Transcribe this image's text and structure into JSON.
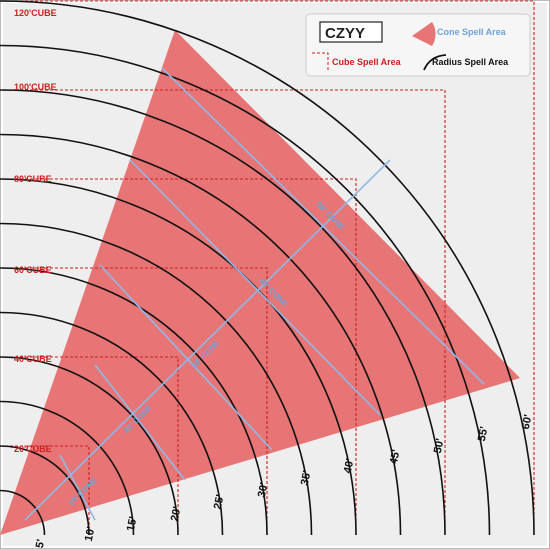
{
  "legend": {
    "brand": "CZYY",
    "cone_label": "Cone Spell Area",
    "cube_label": "Cube Spell Area",
    "radius_label": "Radius Spell Area"
  },
  "cube_labels": [
    "20'CUBE",
    "40'CUBE",
    "60'CUBE",
    "80'CUBE",
    "100'CUBE",
    "120'CUBE"
  ],
  "radius_labels": [
    "5'",
    "10'",
    "15'",
    "20'",
    "25'",
    "30'",
    "35'",
    "40'",
    "45'",
    "50'",
    "55'",
    "60'"
  ],
  "cone_labels": [
    "10' CONE",
    "20' CONE",
    "30' CONE",
    "40' CONE",
    "50' CONE"
  ],
  "colors": {
    "cone_fill": "#e87575",
    "cube_line": "#cc1f1f",
    "cone_line": "#8fb8e8",
    "radius_line": "#111111",
    "background": "#eeeeee",
    "cube_text": "#cc1f1f",
    "cone_text": "#6fa3d8"
  }
}
